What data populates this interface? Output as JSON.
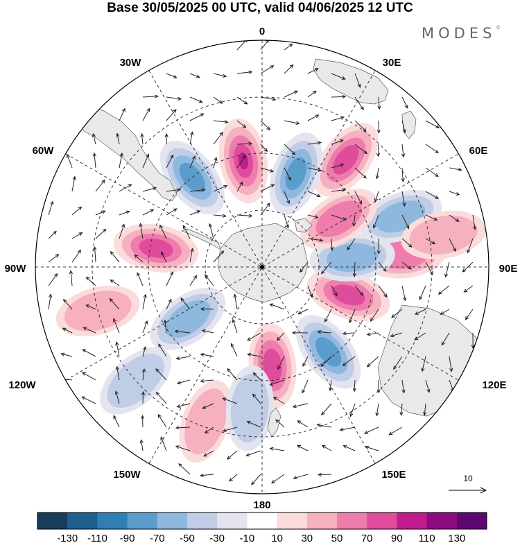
{
  "title": "Base 30/05/2025 00 UTC, valid 04/06/2025 12 UTC",
  "brand": "MODES",
  "brand_mark": "©",
  "longitude_labels": {
    "top": "0",
    "top_left": "30W",
    "top_right": "30E",
    "upper_left": "60W",
    "upper_right": "60E",
    "left": "90W",
    "right": "90E",
    "lower_left": "120W",
    "lower_right": "120E",
    "bottom_left": "150W",
    "bottom_right": "150E",
    "bottom": "180"
  },
  "reference_vector_label": "10",
  "colorbar": {
    "ticks": [
      "-130",
      "-110",
      "-90",
      "-70",
      "-50",
      "-30",
      "-10",
      "10",
      "30",
      "50",
      "70",
      "90",
      "110",
      "130"
    ],
    "colors": [
      "#1a3c5c",
      "#1f5f8e",
      "#2f7fb5",
      "#5a9dcd",
      "#8fb8de",
      "#bfcde6",
      "#e4e4f0",
      "#ffffff",
      "#fbdcdc",
      "#f6b0bf",
      "#ee7cac",
      "#e04c9c",
      "#c01c8c",
      "#8e0a80",
      "#5c0870"
    ]
  },
  "anomalies": [
    {
      "kind": "positive",
      "level": 3,
      "lon": 6,
      "lat": -55
    },
    {
      "kind": "negative",
      "level": 3,
      "lon": 38,
      "lat": -52
    },
    {
      "kind": "positive",
      "level": 3,
      "lon": 72,
      "lat": -58
    },
    {
      "kind": "positive",
      "level": 2,
      "lon": 95,
      "lat": -40
    },
    {
      "kind": "negative",
      "level": 2,
      "lon": 96,
      "lat": -58
    },
    {
      "kind": "negative",
      "level": 2,
      "lon": 110,
      "lat": -38
    },
    {
      "kind": "positive",
      "level": 2,
      "lon": 122,
      "lat": -58
    },
    {
      "kind": "positive",
      "level": 3,
      "lon": 142,
      "lat": -42
    },
    {
      "kind": "negative",
      "level": 3,
      "lon": 160,
      "lat": -55
    },
    {
      "kind": "positive",
      "level": 4,
      "lon": -170,
      "lat": -52
    },
    {
      "kind": "negative",
      "level": 3,
      "lon": -142,
      "lat": -50
    },
    {
      "kind": "positive",
      "level": 3,
      "lon": -100,
      "lat": -52
    },
    {
      "kind": "negative",
      "level": 2,
      "lon": -55,
      "lat": -58
    },
    {
      "kind": "positive",
      "level": 1,
      "lon": -20,
      "lat": -32
    },
    {
      "kind": "negative",
      "level": 1,
      "lon": -5,
      "lat": -40
    },
    {
      "kind": "positive",
      "level": 1,
      "lon": -75,
      "lat": -30
    },
    {
      "kind": "negative",
      "level": 1,
      "lon": -48,
      "lat": -30
    },
    {
      "kind": "positive",
      "level": 1,
      "lon": 100,
      "lat": -25
    }
  ]
}
